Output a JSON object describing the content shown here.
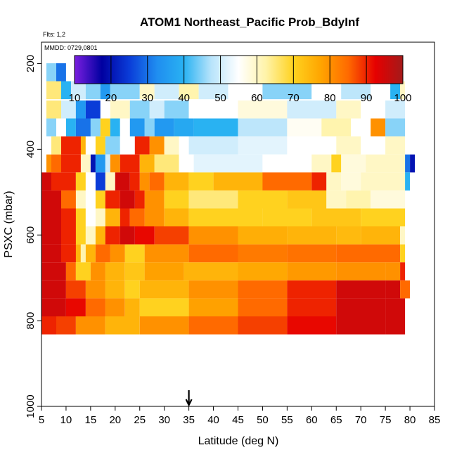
{
  "header": {
    "title": "ATOM1 Northeast_Pacific Prob_BdyInf",
    "flights": "Flts: 1,2",
    "mmdd": "MMDD: 0729,0801"
  },
  "colors": {
    "scale": [
      "#7b1fe0",
      "#0000a0",
      "#0a3cd8",
      "#1f8df0",
      "#29b2f2",
      "#b8e4fb",
      "#ffffff",
      "#fff3a8",
      "#ffd21f",
      "#ffa500",
      "#ff6a00",
      "#e60000",
      "#a31a1a"
    ]
  },
  "chart_data": {
    "type": "heatmap",
    "xlabel": "Latitude (deg N)",
    "ylabel": "PSXC (mbar)",
    "xlim": [
      5,
      85
    ],
    "ylim": [
      1000,
      150
    ],
    "x_ticks": [
      5,
      10,
      15,
      20,
      25,
      30,
      35,
      40,
      45,
      50,
      55,
      60,
      65,
      70,
      75,
      80,
      85
    ],
    "y_ticks": [
      200,
      400,
      600,
      800,
      1000
    ],
    "colorbar": {
      "min": 10,
      "max": 100,
      "ticks": [
        10,
        20,
        30,
        40,
        50,
        60,
        70,
        80,
        90,
        100
      ]
    },
    "annotation": {
      "type": "arrow",
      "x": 35,
      "label": ""
    },
    "rows": [
      {
        "p": 220,
        "segments": [
          [
            6,
            8,
            45
          ],
          [
            8,
            10,
            30
          ],
          [
            10,
            13,
            55
          ],
          [
            13,
            15,
            25
          ],
          [
            15,
            17,
            10
          ],
          [
            17,
            19,
            35
          ],
          [
            19,
            27,
            55
          ],
          [
            27,
            28,
            70
          ],
          [
            28,
            33,
            50
          ],
          [
            33,
            36,
            45
          ],
          [
            36,
            60,
            42
          ],
          [
            60,
            63,
            55
          ],
          [
            63,
            66,
            25
          ],
          [
            66,
            68,
            80
          ],
          [
            68,
            70,
            60
          ],
          [
            70,
            73,
            35
          ],
          [
            73,
            76,
            55
          ],
          [
            76,
            78,
            20
          ]
        ]
      },
      {
        "p": 262,
        "segments": [
          [
            6,
            9,
            65
          ],
          [
            9,
            11,
            40
          ],
          [
            11,
            14,
            50
          ],
          [
            14,
            17,
            45
          ],
          [
            17,
            19,
            35
          ],
          [
            19,
            25,
            45
          ],
          [
            25,
            28,
            60
          ],
          [
            28,
            33,
            50
          ],
          [
            33,
            37,
            62
          ],
          [
            37,
            43,
            50
          ],
          [
            43,
            50,
            55
          ],
          [
            50,
            60,
            45
          ],
          [
            60,
            66,
            55
          ],
          [
            66,
            72,
            48
          ],
          [
            72,
            76,
            55
          ],
          [
            76,
            78,
            40
          ],
          [
            78,
            79,
            60
          ]
        ]
      },
      {
        "p": 307,
        "segments": [
          [
            6,
            9,
            65
          ],
          [
            9,
            12,
            50
          ],
          [
            12,
            14,
            35
          ],
          [
            14,
            17,
            25
          ],
          [
            17,
            19,
            55
          ],
          [
            19,
            23,
            60
          ],
          [
            23,
            27,
            45
          ],
          [
            27,
            30,
            50
          ],
          [
            30,
            35,
            45
          ],
          [
            35,
            45,
            55
          ],
          [
            45,
            55,
            58
          ],
          [
            55,
            65,
            50
          ],
          [
            65,
            70,
            60
          ],
          [
            70,
            75,
            55
          ],
          [
            75,
            79,
            50
          ]
        ]
      },
      {
        "p": 349,
        "segments": [
          [
            6,
            8,
            45
          ],
          [
            8,
            10,
            55
          ],
          [
            10,
            12,
            40
          ],
          [
            12,
            15,
            30
          ],
          [
            15,
            17,
            45
          ],
          [
            17,
            19,
            70
          ],
          [
            19,
            21,
            40
          ],
          [
            21,
            23,
            55
          ],
          [
            23,
            26,
            35
          ],
          [
            26,
            28,
            45
          ],
          [
            28,
            32,
            35
          ],
          [
            32,
            36,
            38
          ],
          [
            36,
            45,
            40
          ],
          [
            45,
            55,
            48
          ],
          [
            55,
            62,
            56
          ],
          [
            62,
            68,
            62
          ],
          [
            68,
            72,
            55
          ],
          [
            72,
            75,
            80
          ],
          [
            75,
            79,
            45
          ]
        ]
      },
      {
        "p": 391,
        "segments": [
          [
            6,
            7,
            55
          ],
          [
            7,
            9,
            65
          ],
          [
            9,
            13,
            90
          ],
          [
            13,
            14,
            75
          ],
          [
            14,
            16,
            55
          ],
          [
            16,
            18,
            70
          ],
          [
            18,
            21,
            45
          ],
          [
            21,
            24,
            55
          ],
          [
            24,
            27,
            90
          ],
          [
            27,
            30,
            80
          ],
          [
            30,
            33,
            60
          ],
          [
            33,
            35,
            55
          ],
          [
            35,
            45,
            50
          ],
          [
            45,
            55,
            52
          ],
          [
            55,
            65,
            55
          ],
          [
            65,
            70,
            60
          ],
          [
            70,
            75,
            55
          ],
          [
            75,
            79,
            60
          ]
        ]
      },
      {
        "p": 433,
        "segments": [
          [
            6,
            7,
            80
          ],
          [
            7,
            9,
            85
          ],
          [
            9,
            13,
            90
          ],
          [
            13,
            15,
            60
          ],
          [
            15,
            16,
            20
          ],
          [
            16,
            18,
            35
          ],
          [
            18,
            19,
            50
          ],
          [
            19,
            21,
            80
          ],
          [
            21,
            25,
            90
          ],
          [
            25,
            28,
            75
          ],
          [
            28,
            33,
            65
          ],
          [
            33,
            36,
            55
          ],
          [
            36,
            50,
            52
          ],
          [
            50,
            60,
            55
          ],
          [
            60,
            64,
            60
          ],
          [
            64,
            66,
            70
          ],
          [
            66,
            71,
            58
          ],
          [
            71,
            79,
            60
          ],
          [
            79,
            80,
            30
          ],
          [
            80,
            81,
            20
          ]
        ]
      },
      {
        "p": 475,
        "segments": [
          [
            5,
            7,
            95
          ],
          [
            7,
            12,
            90
          ],
          [
            12,
            14,
            70
          ],
          [
            14,
            16,
            55
          ],
          [
            16,
            18,
            25
          ],
          [
            18,
            20,
            60
          ],
          [
            20,
            23,
            95
          ],
          [
            23,
            25,
            90
          ],
          [
            25,
            27,
            80
          ],
          [
            27,
            30,
            85
          ],
          [
            30,
            35,
            75
          ],
          [
            35,
            40,
            70
          ],
          [
            40,
            50,
            75
          ],
          [
            50,
            60,
            85
          ],
          [
            60,
            63,
            90
          ],
          [
            63,
            66,
            60
          ],
          [
            66,
            70,
            58
          ],
          [
            70,
            79,
            60
          ],
          [
            79,
            80,
            40
          ]
        ]
      },
      {
        "p": 517,
        "segments": [
          [
            5,
            9,
            95
          ],
          [
            9,
            12,
            85
          ],
          [
            12,
            14,
            60
          ],
          [
            14,
            16,
            55
          ],
          [
            16,
            18,
            70
          ],
          [
            18,
            21,
            90
          ],
          [
            21,
            24,
            95
          ],
          [
            24,
            26,
            90
          ],
          [
            26,
            30,
            80
          ],
          [
            30,
            35,
            70
          ],
          [
            35,
            45,
            65
          ],
          [
            45,
            55,
            70
          ],
          [
            55,
            63,
            72
          ],
          [
            63,
            67,
            60
          ],
          [
            67,
            72,
            62
          ],
          [
            72,
            79,
            58
          ]
        ]
      },
      {
        "p": 559,
        "segments": [
          [
            5,
            9,
            95
          ],
          [
            9,
            12,
            90
          ],
          [
            12,
            14,
            70
          ],
          [
            14,
            16,
            55
          ],
          [
            16,
            18,
            60
          ],
          [
            18,
            21,
            75
          ],
          [
            21,
            23,
            90
          ],
          [
            23,
            26,
            85
          ],
          [
            26,
            30,
            80
          ],
          [
            30,
            35,
            75
          ],
          [
            35,
            50,
            70
          ],
          [
            50,
            60,
            70
          ],
          [
            60,
            70,
            72
          ],
          [
            70,
            79,
            70
          ]
        ]
      },
      {
        "p": 601,
        "segments": [
          [
            5,
            9,
            95
          ],
          [
            9,
            12,
            90
          ],
          [
            12,
            14,
            70
          ],
          [
            14,
            16,
            60
          ],
          [
            16,
            18,
            75
          ],
          [
            18,
            21,
            90
          ],
          [
            21,
            24,
            95
          ],
          [
            24,
            28,
            92
          ],
          [
            28,
            35,
            88
          ],
          [
            35,
            45,
            80
          ],
          [
            45,
            55,
            76
          ],
          [
            55,
            65,
            75
          ],
          [
            65,
            70,
            74
          ],
          [
            70,
            78,
            75
          ],
          [
            78,
            79,
            60
          ]
        ]
      },
      {
        "p": 643,
        "segments": [
          [
            5,
            9,
            95
          ],
          [
            9,
            12,
            90
          ],
          [
            12,
            13,
            75
          ],
          [
            13,
            14,
            62
          ],
          [
            14,
            16,
            75
          ],
          [
            16,
            19,
            85
          ],
          [
            19,
            22,
            80
          ],
          [
            22,
            26,
            70
          ],
          [
            26,
            35,
            80
          ],
          [
            35,
            45,
            85
          ],
          [
            45,
            55,
            83
          ],
          [
            55,
            65,
            84
          ],
          [
            65,
            78,
            85
          ],
          [
            78,
            79,
            70
          ]
        ]
      },
      {
        "p": 685,
        "segments": [
          [
            5,
            10,
            95
          ],
          [
            10,
            12,
            85
          ],
          [
            12,
            15,
            70
          ],
          [
            15,
            18,
            80
          ],
          [
            18,
            22,
            75
          ],
          [
            22,
            26,
            72
          ],
          [
            26,
            34,
            78
          ],
          [
            34,
            45,
            75
          ],
          [
            45,
            55,
            77
          ],
          [
            55,
            65,
            79
          ],
          [
            65,
            75,
            80
          ],
          [
            75,
            78,
            80
          ],
          [
            78,
            79,
            90
          ]
        ]
      },
      {
        "p": 727,
        "segments": [
          [
            5,
            10,
            95
          ],
          [
            10,
            14,
            88
          ],
          [
            14,
            18,
            80
          ],
          [
            18,
            22,
            75
          ],
          [
            22,
            25,
            70
          ],
          [
            25,
            35,
            75
          ],
          [
            35,
            45,
            80
          ],
          [
            45,
            55,
            85
          ],
          [
            55,
            65,
            90
          ],
          [
            65,
            75,
            95
          ],
          [
            75,
            78,
            95
          ],
          [
            78,
            80,
            85
          ]
        ]
      },
      {
        "p": 769,
        "segments": [
          [
            5,
            10,
            95
          ],
          [
            10,
            14,
            92
          ],
          [
            14,
            18,
            85
          ],
          [
            18,
            22,
            80
          ],
          [
            22,
            25,
            75
          ],
          [
            25,
            35,
            70
          ],
          [
            35,
            45,
            78
          ],
          [
            45,
            55,
            85
          ],
          [
            55,
            65,
            90
          ],
          [
            65,
            75,
            95
          ],
          [
            75,
            79,
            95
          ]
        ]
      },
      {
        "p": 811,
        "segments": [
          [
            5,
            8,
            90
          ],
          [
            8,
            12,
            88
          ],
          [
            12,
            18,
            80
          ],
          [
            18,
            25,
            75
          ],
          [
            25,
            35,
            80
          ],
          [
            35,
            45,
            85
          ],
          [
            45,
            55,
            88
          ],
          [
            55,
            65,
            92
          ],
          [
            65,
            75,
            95
          ],
          [
            75,
            79,
            95
          ]
        ]
      }
    ]
  }
}
